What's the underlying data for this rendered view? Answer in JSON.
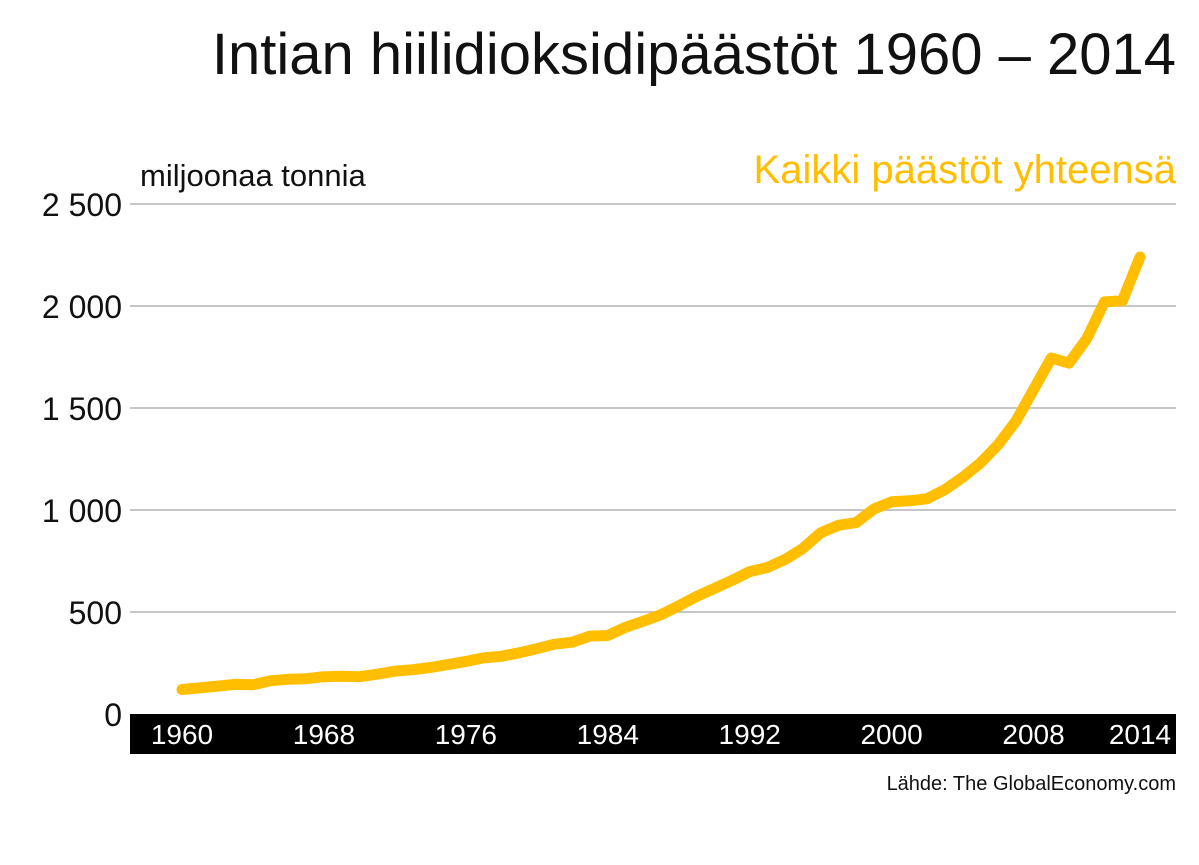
{
  "colors": {
    "series": "#FFBE00",
    "grid": "#b4b4b4",
    "axis_band": "#000000",
    "text": "#111111",
    "axis_label_text": "#ffffff",
    "background": "#ffffff"
  },
  "chart_data": {
    "type": "line",
    "title": "Intian hiilidioksidipäästöt 1960 – 2014",
    "ylabel": "miljoonaa tonnia",
    "xlabel": "",
    "ylim": [
      0,
      2500
    ],
    "xlim": [
      1960,
      2014
    ],
    "grid": true,
    "legend_position": "top-right",
    "y_ticks": [
      {
        "value": 0,
        "label": "0"
      },
      {
        "value": 500,
        "label": "500"
      },
      {
        "value": 1000,
        "label": "1 000"
      },
      {
        "value": 1500,
        "label": "1 500"
      },
      {
        "value": 2000,
        "label": "2 000"
      },
      {
        "value": 2500,
        "label": "2 500"
      }
    ],
    "x_ticks": [
      {
        "value": 1960,
        "label": "1960"
      },
      {
        "value": 1968,
        "label": "1968"
      },
      {
        "value": 1976,
        "label": "1976"
      },
      {
        "value": 1984,
        "label": "1984"
      },
      {
        "value": 1992,
        "label": "1992"
      },
      {
        "value": 2000,
        "label": "2000"
      },
      {
        "value": 2008,
        "label": "2008"
      },
      {
        "value": 2014,
        "label": "2014"
      }
    ],
    "series": [
      {
        "name": "Kaikki päästöt yhteensä",
        "points": [
          [
            1960,
            120
          ],
          [
            1961,
            128
          ],
          [
            1962,
            137
          ],
          [
            1963,
            145
          ],
          [
            1964,
            143
          ],
          [
            1965,
            163
          ],
          [
            1966,
            170
          ],
          [
            1967,
            173
          ],
          [
            1968,
            183
          ],
          [
            1969,
            185
          ],
          [
            1970,
            183
          ],
          [
            1971,
            195
          ],
          [
            1972,
            210
          ],
          [
            1973,
            217
          ],
          [
            1974,
            228
          ],
          [
            1975,
            242
          ],
          [
            1976,
            258
          ],
          [
            1977,
            275
          ],
          [
            1978,
            283
          ],
          [
            1979,
            300
          ],
          [
            1980,
            320
          ],
          [
            1981,
            342
          ],
          [
            1982,
            352
          ],
          [
            1983,
            382
          ],
          [
            1984,
            385
          ],
          [
            1985,
            425
          ],
          [
            1986,
            455
          ],
          [
            1987,
            487
          ],
          [
            1988,
            530
          ],
          [
            1989,
            576
          ],
          [
            1990,
            615
          ],
          [
            1991,
            655
          ],
          [
            1992,
            698
          ],
          [
            1993,
            718
          ],
          [
            1994,
            758
          ],
          [
            1995,
            812
          ],
          [
            1996,
            888
          ],
          [
            1997,
            925
          ],
          [
            1998,
            938
          ],
          [
            1999,
            1005
          ],
          [
            2000,
            1040
          ],
          [
            2001,
            1045
          ],
          [
            2002,
            1055
          ],
          [
            2003,
            1100
          ],
          [
            2004,
            1160
          ],
          [
            2005,
            1230
          ],
          [
            2006,
            1320
          ],
          [
            2007,
            1435
          ],
          [
            2008,
            1590
          ],
          [
            2009,
            1745
          ],
          [
            2010,
            1720
          ],
          [
            2011,
            1840
          ],
          [
            2012,
            2020
          ],
          [
            2013,
            2025
          ],
          [
            2014,
            2240
          ]
        ]
      }
    ]
  },
  "source": "Lähde: The GlobalEconomy.com"
}
